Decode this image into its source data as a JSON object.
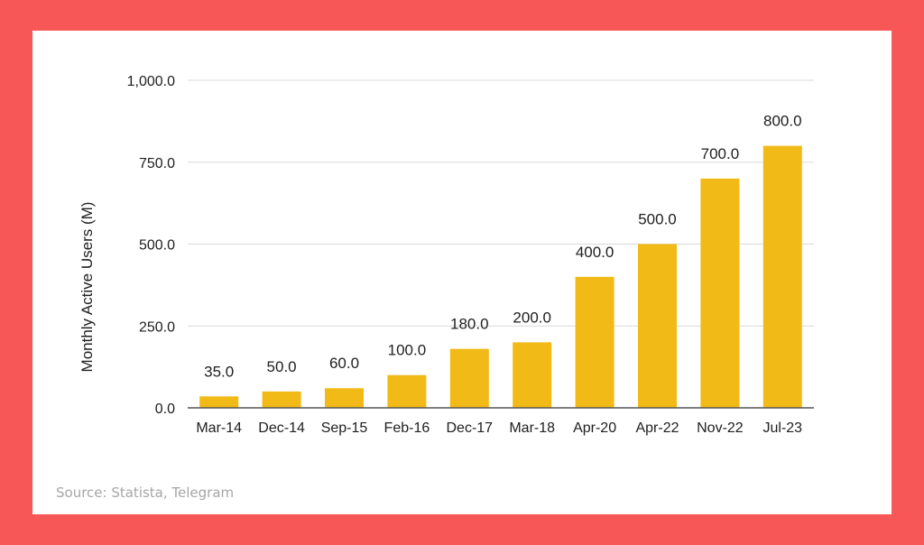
{
  "colors": {
    "page_background": "#F85757",
    "card_background": "#FFFFFF",
    "bar": "#F2BA16",
    "grid": "#D9D9D9",
    "axis": "#555555",
    "text": "#202020",
    "source_text": "#A6A6A6"
  },
  "source": "Source: Statista, Telegram",
  "chart_data": {
    "type": "bar",
    "title": "",
    "xlabel": "",
    "ylabel": "Monthly Active Users (M)",
    "ylim": [
      0,
      1000
    ],
    "yticks": [
      0,
      250,
      500,
      750,
      1000
    ],
    "ytick_labels": [
      "0.0",
      "250.0",
      "500.0",
      "750.0",
      "1,000.0"
    ],
    "grid": true,
    "legend": "none",
    "categories": [
      "Mar-14",
      "Dec-14",
      "Sep-15",
      "Feb-16",
      "Dec-17",
      "Mar-18",
      "Apr-20",
      "Apr-22",
      "Nov-22",
      "Jul-23"
    ],
    "values": [
      35,
      50,
      60,
      100,
      180,
      200,
      400,
      500,
      700,
      800
    ],
    "data_labels": [
      "35.0",
      "50.0",
      "60.0",
      "100.0",
      "180.0",
      "200.0",
      "400.0",
      "500.0",
      "700.0",
      "800.0"
    ]
  }
}
